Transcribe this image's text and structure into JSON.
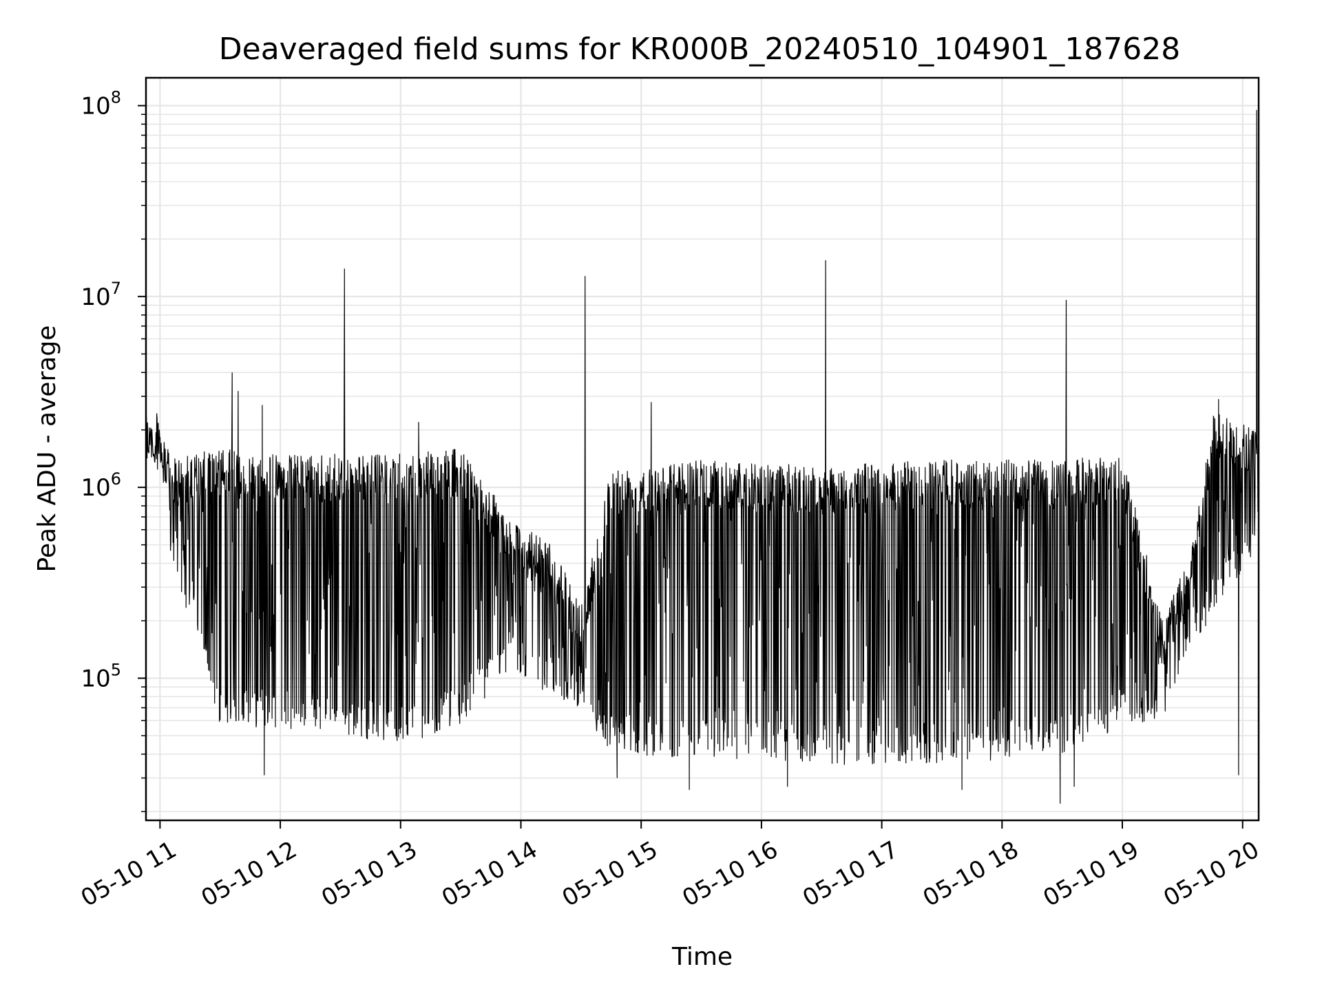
{
  "chart_data": {
    "type": "line",
    "title": "Deaveraged field sums for KR000B_20240510_104901_187628",
    "xlabel": "Time",
    "ylabel": "Peak ADU - average",
    "y_scale": "log",
    "ylim": [
      18000,
      140000000
    ],
    "xlim": [
      "2024-05-10 10:53",
      "2024-05-10 20:08"
    ],
    "grid": true,
    "line_color": "#000000",
    "grid_color": "#e6e6e6",
    "x_ticks": [
      {
        "t": "2024-05-10 11:00",
        "label": "05-10 11"
      },
      {
        "t": "2024-05-10 12:00",
        "label": "05-10 12"
      },
      {
        "t": "2024-05-10 13:00",
        "label": "05-10 13"
      },
      {
        "t": "2024-05-10 14:00",
        "label": "05-10 14"
      },
      {
        "t": "2024-05-10 15:00",
        "label": "05-10 15"
      },
      {
        "t": "2024-05-10 16:00",
        "label": "05-10 16"
      },
      {
        "t": "2024-05-10 17:00",
        "label": "05-10 17"
      },
      {
        "t": "2024-05-10 18:00",
        "label": "05-10 18"
      },
      {
        "t": "2024-05-10 19:00",
        "label": "05-10 19"
      },
      {
        "t": "2024-05-10 20:00",
        "label": "05-10 20"
      }
    ],
    "y_ticks": [
      {
        "value": 100000,
        "base": "10",
        "exp": "5"
      },
      {
        "value": 1000000,
        "base": "10",
        "exp": "6"
      },
      {
        "value": 10000000,
        "base": "10",
        "exp": "7"
      },
      {
        "value": 100000000,
        "base": "10",
        "exp": "8"
      }
    ],
    "series": [
      {
        "envelope": [
          {
            "t": "2024-05-10 10:53",
            "low": 1400000,
            "high": 2400000
          },
          {
            "t": "2024-05-10 11:00",
            "low": 1200000,
            "high": 2500000
          },
          {
            "t": "2024-05-10 11:05",
            "low": 400000,
            "high": 1400000
          },
          {
            "t": "2024-05-10 11:15",
            "low": 200000,
            "high": 1500000
          },
          {
            "t": "2024-05-10 11:30",
            "low": 55000,
            "high": 1600000
          },
          {
            "t": "2024-05-10 12:00",
            "low": 55000,
            "high": 1500000
          },
          {
            "t": "2024-05-10 12:30",
            "low": 50000,
            "high": 1500000
          },
          {
            "t": "2024-05-10 13:00",
            "low": 45000,
            "high": 1500000
          },
          {
            "t": "2024-05-10 13:30",
            "low": 55000,
            "high": 1600000
          },
          {
            "t": "2024-05-10 13:55",
            "low": 110000,
            "high": 700000
          },
          {
            "t": "2024-05-10 14:15",
            "low": 80000,
            "high": 500000
          },
          {
            "t": "2024-05-10 14:30",
            "low": 70000,
            "high": 250000
          },
          {
            "t": "2024-05-10 14:45",
            "low": 40000,
            "high": 1300000
          },
          {
            "t": "2024-05-10 15:30",
            "low": 38000,
            "high": 1400000
          },
          {
            "t": "2024-05-10 16:30",
            "low": 35000,
            "high": 1300000
          },
          {
            "t": "2024-05-10 17:30",
            "low": 35000,
            "high": 1400000
          },
          {
            "t": "2024-05-10 18:30",
            "low": 40000,
            "high": 1400000
          },
          {
            "t": "2024-05-10 19:00",
            "low": 55000,
            "high": 1500000
          },
          {
            "t": "2024-05-10 19:20",
            "low": 60000,
            "high": 200000
          },
          {
            "t": "2024-05-10 19:35",
            "low": 150000,
            "high": 500000
          },
          {
            "t": "2024-05-10 19:45",
            "low": 200000,
            "high": 2500000
          },
          {
            "t": "2024-05-10 20:08",
            "low": 500000,
            "high": 2000000
          }
        ],
        "spikes": [
          {
            "t": "2024-05-10 11:36",
            "value": 4000000
          },
          {
            "t": "2024-05-10 11:39",
            "value": 3200000
          },
          {
            "t": "2024-05-10 11:51",
            "value": 2700000
          },
          {
            "t": "2024-05-10 12:32",
            "value": 14000000
          },
          {
            "t": "2024-05-10 13:09",
            "value": 2200000
          },
          {
            "t": "2024-05-10 14:32",
            "value": 12800000
          },
          {
            "t": "2024-05-10 15:05",
            "value": 2800000
          },
          {
            "t": "2024-05-10 16:32",
            "value": 15500000
          },
          {
            "t": "2024-05-10 18:32",
            "value": 9600000
          },
          {
            "t": "2024-05-10 19:48",
            "value": 2900000
          },
          {
            "t": "2024-05-10 20:07",
            "value": 95000000
          }
        ],
        "dips": [
          {
            "t": "2024-05-10 11:52",
            "value": 31000
          },
          {
            "t": "2024-05-10 14:48",
            "value": 30000
          },
          {
            "t": "2024-05-10 15:24",
            "value": 26000
          },
          {
            "t": "2024-05-10 16:13",
            "value": 27000
          },
          {
            "t": "2024-05-10 17:40",
            "value": 26000
          },
          {
            "t": "2024-05-10 18:29",
            "value": 22000
          },
          {
            "t": "2024-05-10 18:36",
            "value": 27000
          },
          {
            "t": "2024-05-10 19:58",
            "value": 31000
          }
        ]
      }
    ]
  }
}
